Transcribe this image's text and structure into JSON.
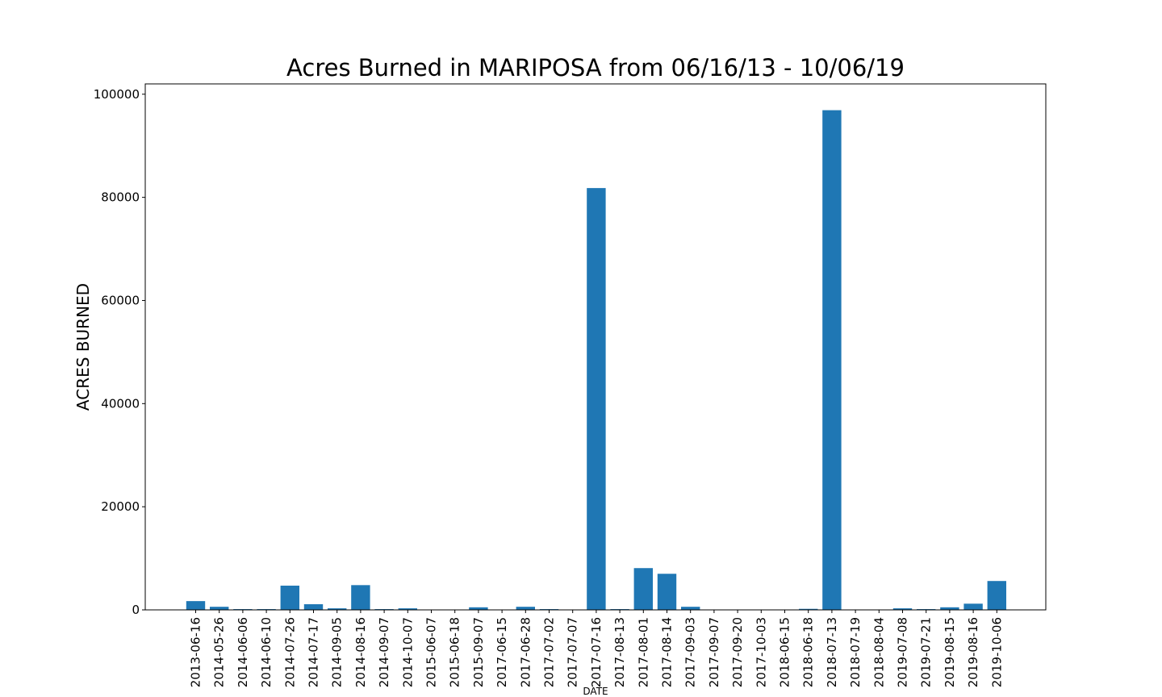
{
  "chart_data": {
    "type": "bar",
    "title": "Acres Burned in MARIPOSA from 06/16/13 - 10/06/19",
    "xlabel": "DATE",
    "ylabel": "ACRES BURNED",
    "ylim": [
      0,
      102000
    ],
    "yticks": [
      0,
      20000,
      40000,
      60000,
      80000,
      100000
    ],
    "grid": false,
    "legend": "none",
    "bar_color": "#1f77b4",
    "categories": [
      "2013-06-16",
      "2014-05-26",
      "2014-06-06",
      "2014-06-10",
      "2014-07-26",
      "2014-07-17",
      "2014-09-05",
      "2014-08-16",
      "2014-09-07",
      "2014-10-07",
      "2015-06-07",
      "2015-06-18",
      "2015-09-07",
      "2017-06-15",
      "2017-06-28",
      "2017-07-02",
      "2017-07-07",
      "2017-07-16",
      "2017-08-13",
      "2017-08-01",
      "2017-08-14",
      "2017-09-03",
      "2017-09-07",
      "2017-09-20",
      "2017-10-03",
      "2018-06-15",
      "2018-06-18",
      "2018-07-13",
      "2018-07-19",
      "2018-08-04",
      "2019-07-08",
      "2019-07-21",
      "2019-08-15",
      "2019-08-16",
      "2019-10-06"
    ],
    "values": [
      1700,
      600,
      150,
      150,
      4700,
      1100,
      300,
      4800,
      150,
      300,
      50,
      50,
      500,
      50,
      600,
      150,
      50,
      81800,
      150,
      8100,
      7000,
      600,
      20,
      20,
      20,
      20,
      200,
      96900,
      20,
      20,
      300,
      150,
      500,
      1200,
      5600
    ]
  }
}
